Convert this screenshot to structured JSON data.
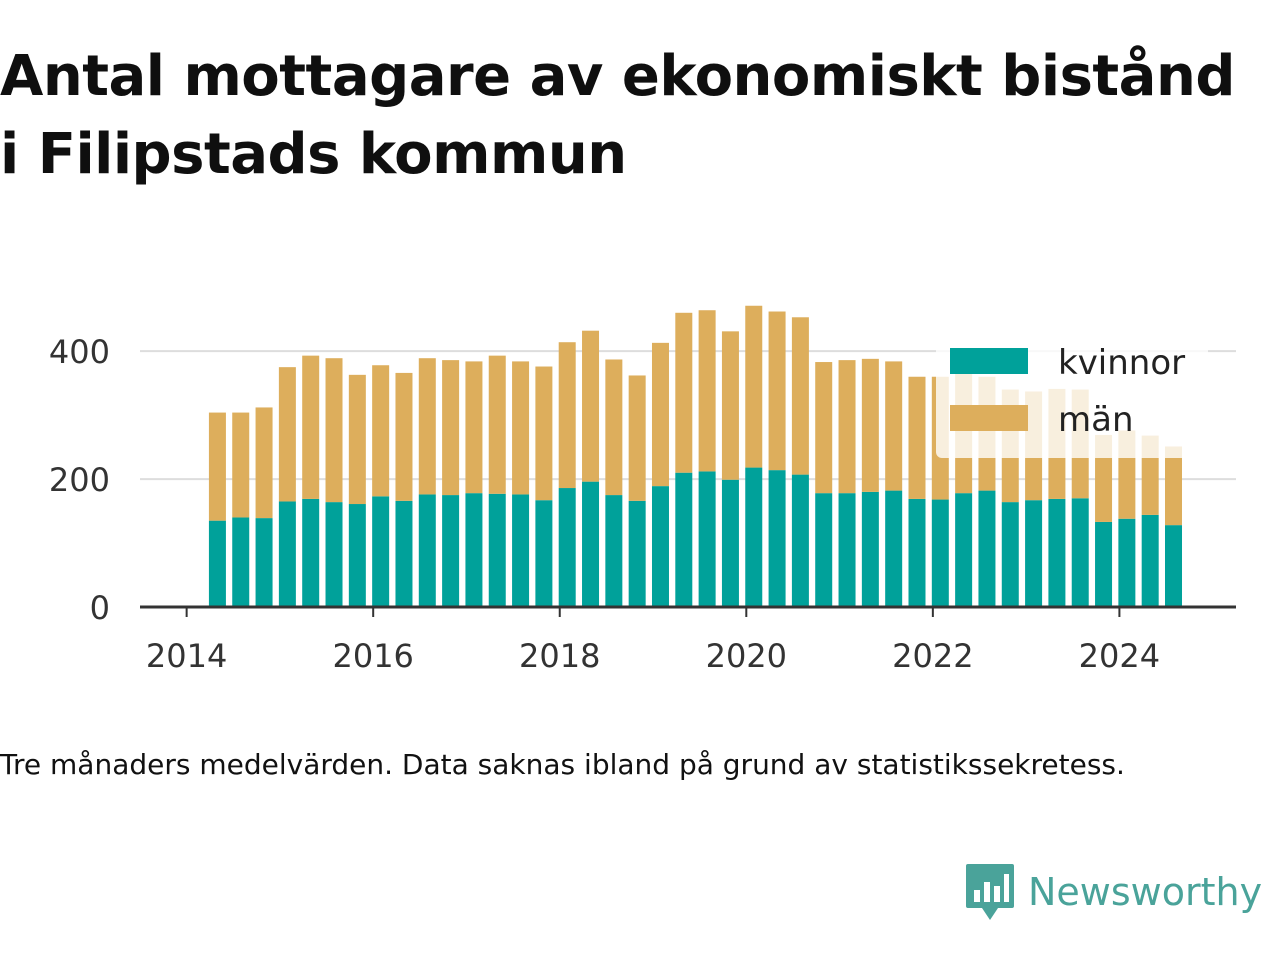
{
  "title": "Antal mottagare av ekonomiskt bistånd i Filipstads kommun",
  "footnote": "Tre månaders medelvärden. Data saknas ibland på grund av statistikssekretess.",
  "brand": {
    "name": "Newsworthy",
    "logo_icon": "newsworthy-logo-icon",
    "color": "#4aa39a"
  },
  "colors": {
    "kvinnor": "#00a19a",
    "man": "#ddae5c",
    "grid": "#dddddd",
    "axis": "#333333"
  },
  "chart_data": {
    "type": "bar",
    "stacked": true,
    "x_ticks": [
      "2014",
      "2016",
      "2018",
      "2020",
      "2022",
      "2024"
    ],
    "y_ticks": [
      "0",
      "200",
      "400"
    ],
    "xlim": [
      2013.5,
      2025.25
    ],
    "ylim": [
      0,
      480
    ],
    "grid": true,
    "legend_position": "top-right",
    "x": [
      2014.33,
      2014.58,
      2014.83,
      2015.08,
      2015.33,
      2015.58,
      2015.83,
      2016.08,
      2016.33,
      2016.58,
      2016.83,
      2017.08,
      2017.33,
      2017.58,
      2017.83,
      2018.08,
      2018.33,
      2018.58,
      2018.83,
      2019.08,
      2019.33,
      2019.58,
      2019.83,
      2020.08,
      2020.33,
      2020.58,
      2020.83,
      2021.08,
      2021.33,
      2021.58,
      2021.83,
      2022.08,
      2022.33,
      2022.58,
      2022.83,
      2023.08,
      2023.33,
      2023.58,
      2023.83,
      2024.08,
      2024.33,
      2024.58
    ],
    "series": [
      {
        "name": "kvinnor",
        "values": [
          135,
          140,
          139,
          165,
          169,
          164,
          161,
          173,
          166,
          176,
          175,
          178,
          177,
          176,
          167,
          186,
          196,
          175,
          166,
          189,
          210,
          212,
          199,
          218,
          214,
          207,
          178,
          178,
          180,
          182,
          169,
          168,
          178,
          182,
          164,
          167,
          169,
          170,
          133,
          138,
          144,
          128
        ]
      },
      {
        "name": "män",
        "values": [
          169,
          164,
          173,
          210,
          224,
          225,
          202,
          205,
          200,
          213,
          211,
          206,
          216,
          208,
          209,
          228,
          236,
          212,
          196,
          224,
          250,
          252,
          232,
          253,
          248,
          246,
          205,
          208,
          208,
          202,
          191,
          192,
          190,
          178,
          176,
          170,
          172,
          170,
          136,
          138,
          124,
          123
        ]
      }
    ]
  }
}
